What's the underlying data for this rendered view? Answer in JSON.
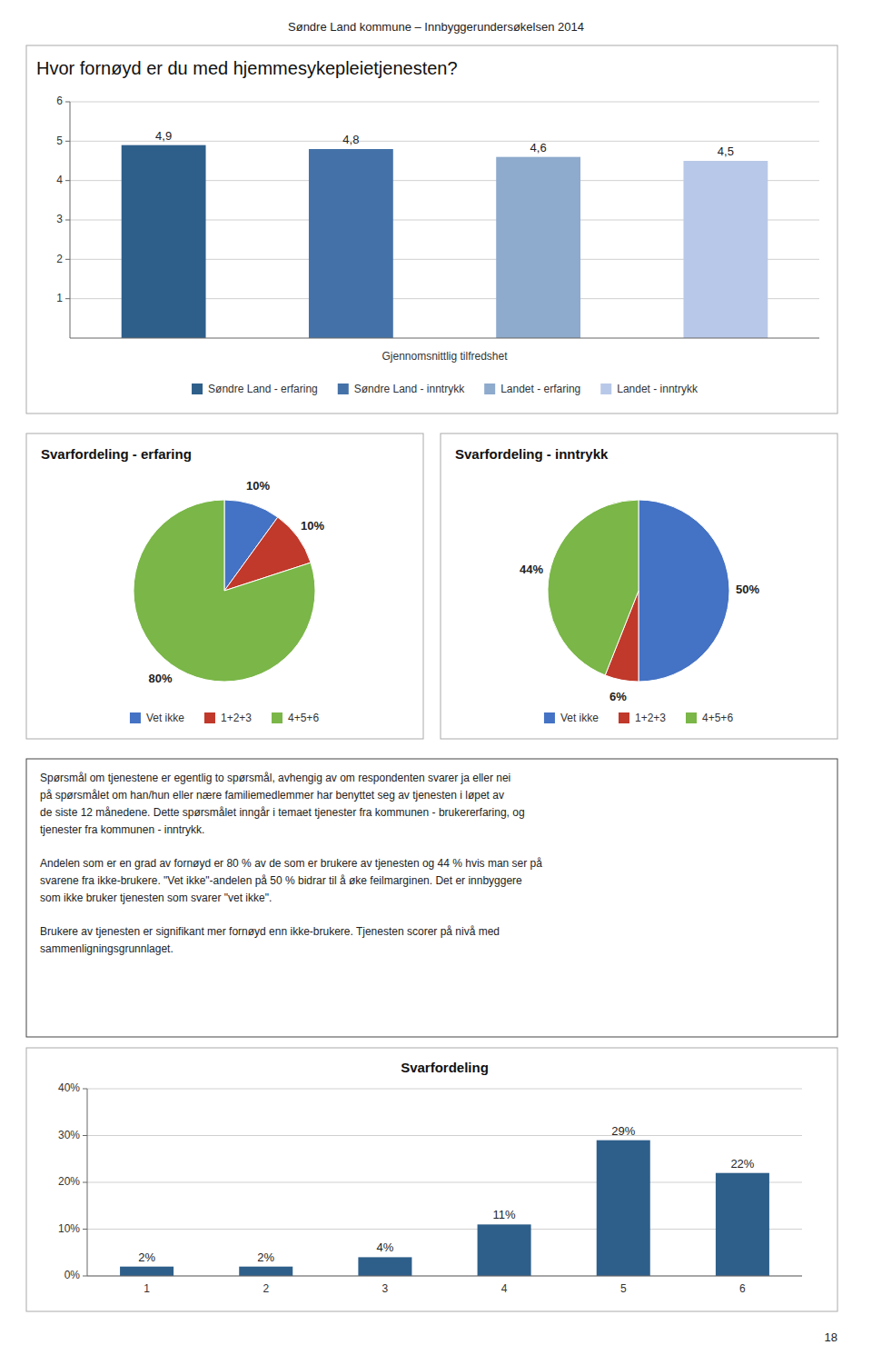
{
  "header": "Søndre Land kommune – Innbyggerundersøkelsen 2014",
  "page_number": "18",
  "text": [
    [
      "Spørsmål om tjenestene er egentlig to spørsmål, avhengig av om respondenten svarer ja eller nei",
      "på spørsmålet om han/hun eller nære familiemedlemmer har benyttet seg av tjenesten i løpet av",
      "de siste 12 månedene. Dette spørsmålet inngår i temaet tjenester fra kommunen - brukererfaring, og",
      "tjenester fra kommunen - inntrykk."
    ],
    [
      "Andelen som er en grad av fornøyd er 80 % av de som er brukere av tjenesten og 44 % hvis man ser på",
      "svarene fra ikke-brukere. \"Vet ikke\"-andelen på 50 % bidrar til å øke feilmarginen. Det er innbyggere",
      "som ikke bruker tjenesten som svarer \"vet ikke\"."
    ],
    [
      "Brukere av tjenesten er signifikant mer fornøyd enn ikke-brukere. Tjenesten scorer på nivå med",
      "sammenligningsgrunnlaget."
    ]
  ],
  "chart_data": [
    {
      "type": "bar",
      "title": "Hvor fornøyd er du med hjemmesykepleietjenesten?",
      "x_label": "Gjennomsnittlig tilfredshet",
      "categories": [
        "Søndre Land - erfaring",
        "Søndre Land - inntrykk",
        "Landet - erfaring",
        "Landet - inntrykk"
      ],
      "values": [
        4.9,
        4.8,
        4.6,
        4.5
      ],
      "value_labels": [
        "4,9",
        "4,8",
        "4,6",
        "4,5"
      ],
      "colors": [
        "#2e5f8a",
        "#4472a8",
        "#8eaacc",
        "#b8c8e8"
      ],
      "ylim": [
        0,
        6
      ],
      "yticks": [
        1,
        2,
        3,
        4,
        5,
        6
      ],
      "grid": true,
      "data_labels": true,
      "legend": "bottom",
      "tick_labels": "y"
    },
    {
      "type": "pie",
      "title": "Svarfordeling - erfaring",
      "categories": [
        "Vet ikke",
        "1+2+3",
        "4+5+6"
      ],
      "values": [
        10,
        10,
        80
      ],
      "value_labels": [
        "10%",
        "10%",
        "80%"
      ],
      "colors": [
        "#4472c4",
        "#c0392b",
        "#7ab648"
      ],
      "data_labels": true,
      "legend": "bottom"
    },
    {
      "type": "pie",
      "title": "Svarfordeling - inntrykk",
      "categories": [
        "Vet ikke",
        "1+2+3",
        "4+5+6"
      ],
      "values": [
        50,
        6,
        44
      ],
      "value_labels": [
        "50%",
        "6%",
        "44%"
      ],
      "colors": [
        "#4472c4",
        "#c0392b",
        "#7ab648"
      ],
      "data_labels": true,
      "legend": "bottom"
    },
    {
      "type": "bar",
      "title": "Svarfordeling",
      "categories": [
        "1",
        "2",
        "3",
        "4",
        "5",
        "6"
      ],
      "values": [
        2,
        2,
        4,
        11,
        29,
        22
      ],
      "value_labels": [
        "2%",
        "2%",
        "4%",
        "11%",
        "29%",
        "22%"
      ],
      "color": "#2e5f8a",
      "ylim": [
        0,
        40
      ],
      "yticks": [
        {
          "value": 0,
          "label": "0%"
        },
        {
          "value": 10,
          "label": "10%"
        },
        {
          "value": 20,
          "label": "20%"
        },
        {
          "value": 30,
          "label": "30%"
        },
        {
          "value": 40,
          "label": "40%"
        }
      ],
      "grid": true,
      "data_labels": true
    }
  ]
}
